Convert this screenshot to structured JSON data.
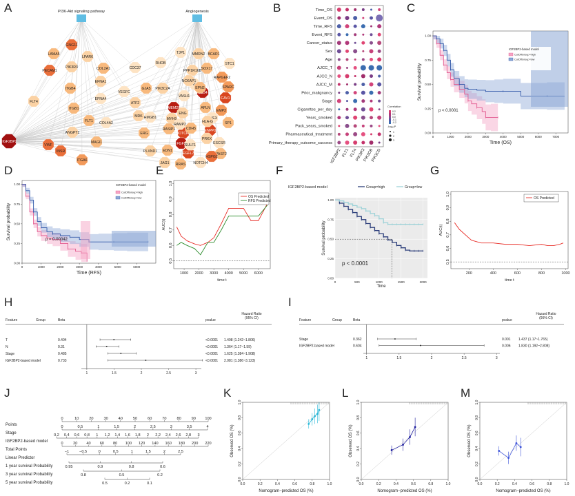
{
  "panel_letters": [
    "A",
    "B",
    "C",
    "D",
    "E",
    "F",
    "G",
    "H",
    "I",
    "J",
    "K",
    "L",
    "M"
  ],
  "panel_A": {
    "pathways": [
      "PI3K-Akt signaling pathway",
      "Angiogenesis"
    ],
    "hub": "IGF2BP2",
    "genes": [
      "GNG11",
      "LPAR6",
      "LAMA5",
      "PECAM1",
      "PIK3R3",
      "COL2A1",
      "CDC37",
      "EFNA1",
      "ITGB4",
      "VEGFC",
      "FLT4",
      "ITGB1",
      "EFNA4",
      "ATF2",
      "FLT1",
      "COL4A2",
      "ANGPT2",
      "MAGI1",
      "VWF",
      "INSR",
      "ITGA6",
      "TJP1",
      "MMRN2",
      "BCAR1",
      "RHOB",
      "PPP1R16B",
      "SOX17",
      "STC1",
      "PIK3C2A",
      "GJA5",
      "GATA6",
      "RAPGEF2",
      "SPARC",
      "VASH1",
      "CD34",
      "CAV1",
      "EMP2",
      "MDK",
      "TMEM204",
      "NOTCH1",
      "FGF2",
      "ERG",
      "HMGB1",
      "MYH9",
      "RASIP1",
      "RAMP2",
      "ENG",
      "APLN",
      "HHEX",
      "NCKAP1",
      "SP1",
      "ENPP2",
      "HLA-G",
      "CDH5",
      "EGFL7",
      "PLXND1",
      "EDN1",
      "ESCSR",
      "PRKX",
      "WASF2",
      "SULF1",
      "JAG1",
      "RRAS",
      "NOTCH4",
      "HSPG2",
      "EPN2"
    ]
  },
  "panel_B": {
    "rows": [
      "Time_OS",
      "Event_OS",
      "Time_RFS",
      "Event_RFS",
      "Cancer_status",
      "Sex",
      "Age",
      "AJCC_T",
      "AJCC_N",
      "AJCC_M",
      "Prior_malignancy",
      "Stage",
      "Cigarettes_per_day",
      "Years_smoked",
      "Pack_years_smoked",
      "Pharmaceutical_treatment",
      "Primary_therapy_outcome_success"
    ],
    "columns": [
      "IGF2BP2",
      "FLT1",
      "FLT4",
      "PIK3R3",
      "PIK3CB",
      "PIK3CD"
    ],
    "legend_correlation": "Correlation",
    "legend_corr_ticks": [
      "0.2",
      "0.1",
      "0.0",
      "-0.1",
      "-0.2"
    ],
    "legend_logp": "-log₁₀P",
    "legend_logp_ticks": [
      "1",
      "2",
      "3"
    ]
  },
  "chart_data": [
    {
      "panel": "C",
      "type": "line",
      "title": "",
      "legend_title": "IGF2BP2-based model",
      "series": [
        {
          "name": "CutOffGroup=high",
          "x": [
            0,
            200,
            400,
            600,
            800,
            1000,
            1200,
            1500,
            1800,
            2000,
            2200,
            2500,
            2800,
            3000,
            3300,
            3700
          ],
          "y": [
            1.0,
            0.92,
            0.8,
            0.7,
            0.62,
            0.55,
            0.5,
            0.45,
            0.4,
            0.33,
            0.3,
            0.26,
            0.22,
            0.16,
            0.16,
            0.16
          ]
        },
        {
          "name": "CutOffGroup=low",
          "x": [
            0,
            200,
            400,
            600,
            800,
            1000,
            1200,
            1500,
            1800,
            2000,
            2500,
            3000,
            3500,
            4000,
            5000,
            6500,
            7500
          ],
          "y": [
            1.0,
            0.97,
            0.92,
            0.85,
            0.75,
            0.65,
            0.56,
            0.5,
            0.46,
            0.45,
            0.44,
            0.43,
            0.43,
            0.43,
            0.38,
            0.38,
            0.38
          ]
        }
      ],
      "xlabel": "Time (OS)",
      "ylabel": "Survival probability",
      "xticks": [
        0,
        1000,
        2000,
        3000,
        4000,
        5000,
        6000,
        7000
      ],
      "yticks": [
        0.0,
        0.25,
        0.5,
        0.75,
        1.0
      ],
      "xlim": [
        0,
        7700
      ],
      "ylim": [
        0,
        1.05
      ],
      "annotation": "p < 0.0001"
    },
    {
      "panel": "D",
      "type": "line",
      "legend_title": "IGF2BP2-based model",
      "series": [
        {
          "name": "CutOffGroup=high",
          "x": [
            0,
            200,
            400,
            600,
            800,
            1000,
            1300,
            1600,
            2000,
            2400,
            2800,
            3100,
            3400
          ],
          "y": [
            1.0,
            0.85,
            0.65,
            0.5,
            0.4,
            0.35,
            0.32,
            0.3,
            0.25,
            0.18,
            0.15,
            0.13,
            0.02
          ]
        },
        {
          "name": "CutOffGroup=low",
          "x": [
            0,
            200,
            400,
            600,
            800,
            1000,
            1300,
            1600,
            2000,
            2500,
            3000,
            3500,
            4000,
            4800,
            5500,
            6600
          ],
          "y": [
            1.0,
            0.92,
            0.8,
            0.65,
            0.53,
            0.45,
            0.4,
            0.37,
            0.35,
            0.33,
            0.3,
            0.27,
            0.27,
            0.27,
            0.27,
            0.27
          ]
        }
      ],
      "xlabel": "Time (RFS)",
      "ylabel": "Survival probability",
      "xticks": [
        0,
        1000,
        2000,
        3000,
        4000,
        5000,
        6000
      ],
      "yticks": [
        0.0,
        0.25,
        0.5,
        0.75,
        1.0
      ],
      "xlim": [
        0,
        7000
      ],
      "ylim": [
        0,
        1.05
      ],
      "annotation": "p = 0.00042"
    },
    {
      "panel": "E",
      "type": "line",
      "series": [
        {
          "name": "OS Predicted",
          "color": "#e8302a",
          "x": [
            500,
            800,
            1200,
            1700,
            2100,
            2600,
            3000,
            3500,
            4000,
            4500,
            5000,
            5500,
            6000,
            6600
          ],
          "y": [
            0.72,
            0.66,
            0.63,
            0.61,
            0.6,
            0.62,
            0.65,
            0.74,
            0.84,
            0.84,
            0.84,
            0.76,
            0.76,
            0.87
          ]
        },
        {
          "name": "RFS Predicted",
          "color": "#2a8a2a",
          "x": [
            500,
            800,
            1200,
            1700,
            2100,
            2600,
            3000,
            3500,
            4000,
            4500,
            5000,
            5500,
            6000,
            6600
          ],
          "y": [
            0.6,
            0.62,
            0.6,
            0.58,
            0.54,
            0.62,
            0.62,
            0.7,
            0.79,
            0.79,
            0.79,
            0.79,
            0.79,
            0.86
          ]
        }
      ],
      "xlabel": "time t",
      "ylabel": "AUC(t)",
      "xticks": [
        1000,
        2000,
        3000,
        4000,
        5000,
        6000
      ],
      "yticks": [
        0.5,
        0.6,
        0.7,
        0.8,
        0.9,
        1.0
      ],
      "xlim": [
        300,
        6800
      ],
      "ylim": [
        0.45,
        1.02
      ],
      "reference_line": 0.5
    },
    {
      "panel": "F",
      "type": "line",
      "legend_title": "IGF2BP2-based model",
      "series": [
        {
          "name": "Group=high",
          "x": [
            0,
            100,
            200,
            300,
            400,
            500,
            600,
            700,
            800,
            900,
            1000,
            1100,
            1200,
            1300,
            1400,
            1500,
            1600,
            1700,
            1800,
            1900,
            2000
          ],
          "y": [
            1.0,
            0.96,
            0.92,
            0.88,
            0.84,
            0.79,
            0.75,
            0.7,
            0.65,
            0.61,
            0.57,
            0.53,
            0.49,
            0.46,
            0.42,
            0.39,
            0.36,
            0.35,
            0.35,
            0.35,
            0.35
          ]
        },
        {
          "name": "Group=low",
          "x": [
            0,
            100,
            200,
            300,
            400,
            500,
            600,
            700,
            800,
            900,
            1000,
            1100,
            1200,
            1300,
            1400,
            1500,
            1600,
            1700,
            1800,
            1900,
            2000
          ],
          "y": [
            1.0,
            0.99,
            0.97,
            0.95,
            0.93,
            0.91,
            0.89,
            0.86,
            0.83,
            0.8,
            0.76,
            0.71,
            0.69,
            0.69,
            0.69,
            0.69,
            0.69,
            0.69,
            0.69,
            0.69,
            0.69
          ]
        }
      ],
      "xlabel": "Time",
      "ylabel": "Survival probability",
      "xticks": [
        0,
        500,
        1000,
        1500,
        2000
      ],
      "yticks": [
        0.0,
        0.25,
        0.5,
        0.75,
        1.0
      ],
      "xlim": [
        0,
        2100
      ],
      "ylim": [
        0,
        1.03
      ],
      "annotation": "p < 0.0001",
      "median_x": 1290
    },
    {
      "panel": "G",
      "type": "line",
      "series": [
        {
          "name": "OS Predicted",
          "color": "#e8302a",
          "x": [
            80,
            120,
            170,
            220,
            300,
            400,
            500,
            600,
            700,
            800,
            850,
            900,
            950,
            980
          ],
          "y": [
            0.79,
            0.74,
            0.7,
            0.66,
            0.64,
            0.64,
            0.63,
            0.63,
            0.62,
            0.63,
            0.62,
            0.62,
            0.63,
            0.64
          ]
        }
      ],
      "xlabel": "time t",
      "ylabel": "AUC(t)",
      "xticks": [
        200,
        400,
        600,
        800,
        1000
      ],
      "yticks": [
        0.5,
        0.6,
        0.7,
        0.8,
        0.9,
        1.0
      ],
      "xlim": [
        50,
        1020
      ],
      "ylim": [
        0.45,
        1.02
      ],
      "reference_line": 0.5
    },
    {
      "panel": "H",
      "type": "table",
      "headers": {
        "feature": "Feature",
        "group": "Group",
        "beta": "Beta",
        "pvalue": "pvalue",
        "hr": "Hazard Ratio",
        "ci": "(95% CI)"
      },
      "rows": [
        {
          "feature": "T",
          "beta": "0.404",
          "pvalue": "<0.0001",
          "hr": "1.498 (1.242~1.806)",
          "est": 1.498,
          "lo": 1.242,
          "hi": 1.806
        },
        {
          "feature": "N",
          "beta": "0.31",
          "pvalue": "<0.0001",
          "hr": "1.364 (1.17~1.59)",
          "est": 1.364,
          "lo": 1.17,
          "hi": 1.59
        },
        {
          "feature": "Stage",
          "beta": "0.485",
          "pvalue": "<0.0001",
          "hr": "1.625 (1.384~1.908)",
          "est": 1.625,
          "lo": 1.384,
          "hi": 1.908
        },
        {
          "feature": "IGF2BP2-based model",
          "beta": "0.733",
          "pvalue": "<0.0001",
          "hr": "2.081 (1.386~3.123)",
          "est": 2.081,
          "lo": 1.386,
          "hi": 3.123
        }
      ],
      "xticks": [
        "1",
        "1.5",
        "2",
        "2.5",
        "3"
      ],
      "xlim": [
        0.9,
        3.1
      ]
    },
    {
      "panel": "I",
      "type": "table",
      "headers": {
        "feature": "Feature",
        "group": "Group",
        "beta": "Beta",
        "pvalue": "pvalue",
        "hr": "Hazard Ratio",
        "ci": "(95% CI)"
      },
      "rows": [
        {
          "feature": "Stage",
          "beta": "0.362",
          "pvalue": "0.001",
          "hr": "1.437 (1.17~1.765)",
          "est": 1.437,
          "lo": 1.17,
          "hi": 1.765
        },
        {
          "feature": "IGF2BP2-based model",
          "beta": "0.604",
          "pvalue": "0.006",
          "hr": "1.830 (1.192~2.808)",
          "est": 1.83,
          "lo": 1.192,
          "hi": 2.808
        }
      ],
      "xticks": [
        "1",
        "1.5",
        "2",
        "2.5",
        "3"
      ],
      "xlim": [
        0.95,
        3.05
      ]
    },
    {
      "panel": "K",
      "type": "scatter",
      "xlabel": "Nomogram−predicted OS (%)",
      "ylabel": "Observed OS (%)",
      "ticks": [
        "0.0",
        "0.2",
        "0.4",
        "0.6",
        "0.8",
        "1.0"
      ],
      "color": "#2ab8d8",
      "x": [
        0.76,
        0.8,
        0.83,
        0.86,
        0.88
      ],
      "y": [
        0.72,
        0.78,
        0.82,
        0.85,
        0.9
      ]
    },
    {
      "panel": "L",
      "type": "scatter",
      "xlabel": "Nomogram−predicted OS (%)",
      "ylabel": "Observed OS (%)",
      "ticks": [
        "0.0",
        "0.2",
        "0.4",
        "0.6",
        "0.8",
        "1.0"
      ],
      "color": "#1c1c9e",
      "x": [
        0.35,
        0.48,
        0.56,
        0.62
      ],
      "y": [
        0.38,
        0.45,
        0.55,
        0.68
      ]
    },
    {
      "panel": "M",
      "type": "scatter",
      "xlabel": "Nomogram−predicted OS (%)",
      "ylabel": "Observed OS (%)",
      "ticks": [
        "0.0",
        "0.2",
        "0.4",
        "0.6",
        "0.8",
        "1.0"
      ],
      "color": "#3b52d8",
      "x": [
        0.22,
        0.33,
        0.42,
        0.47
      ],
      "y": [
        0.37,
        0.28,
        0.47,
        0.42
      ]
    }
  ],
  "panel_J": {
    "rows": [
      {
        "label": "Points",
        "ticks": [
          "0",
          "10",
          "20",
          "30",
          "40",
          "50",
          "60",
          "70",
          "80",
          "90",
          "100"
        ]
      },
      {
        "label": "Stage",
        "ticks": [
          "0",
          "0.5",
          "1",
          "1.5",
          "2",
          "2.5",
          "3",
          "3.5",
          "4"
        ]
      },
      {
        "label": "IGF2BP2-based model",
        "ticks": [
          "0.2",
          "0.4",
          "0.6",
          "0.8",
          "1",
          "1.2",
          "1.4",
          "1.6",
          "1.8",
          "2",
          "2.2",
          "2.4",
          "2.6",
          "2.8",
          "3"
        ]
      },
      {
        "label": "Total Points",
        "ticks": [
          "0",
          "20",
          "40",
          "60",
          "80",
          "100",
          "120",
          "140",
          "160",
          "180",
          "200",
          "220"
        ]
      },
      {
        "label": "Linear Predictor",
        "ticks": [
          "−1",
          "−0.5",
          "0",
          "0.5",
          "1",
          "1.5",
          "2",
          "2.5"
        ]
      },
      {
        "label": "1 year survival Probability",
        "ticks": [
          "0.95",
          "0.9",
          "0.8",
          "0.6"
        ]
      },
      {
        "label": "3 year survival Probability",
        "ticks": [
          "0.8",
          "0.5",
          "0.2"
        ]
      },
      {
        "label": "5 year survival Probability",
        "ticks": [
          "0.5",
          "0.2",
          "0.1"
        ]
      }
    ]
  }
}
